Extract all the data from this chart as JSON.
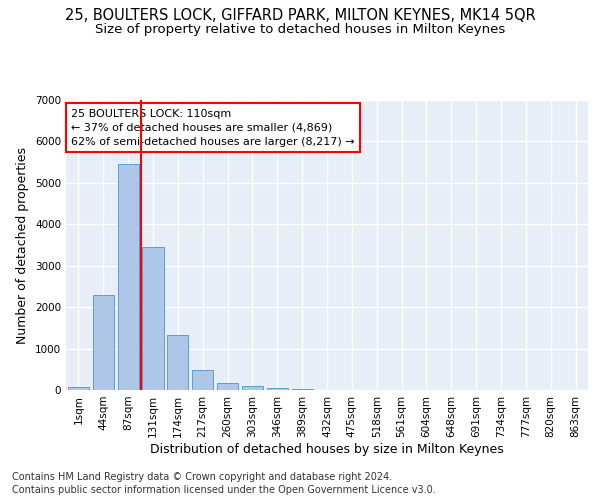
{
  "title": "25, BOULTERS LOCK, GIFFARD PARK, MILTON KEYNES, MK14 5QR",
  "subtitle": "Size of property relative to detached houses in Milton Keynes",
  "xlabel": "Distribution of detached houses by size in Milton Keynes",
  "ylabel": "Number of detached properties",
  "footnote1": "Contains HM Land Registry data © Crown copyright and database right 2024.",
  "footnote2": "Contains public sector information licensed under the Open Government Licence v3.0.",
  "bar_labels": [
    "1sqm",
    "44sqm",
    "87sqm",
    "131sqm",
    "174sqm",
    "217sqm",
    "260sqm",
    "303sqm",
    "346sqm",
    "389sqm",
    "432sqm",
    "475sqm",
    "518sqm",
    "561sqm",
    "604sqm",
    "648sqm",
    "691sqm",
    "734sqm",
    "777sqm",
    "820sqm",
    "863sqm"
  ],
  "bar_values": [
    80,
    2300,
    5450,
    3450,
    1320,
    480,
    165,
    100,
    55,
    20,
    5,
    2,
    1,
    0,
    0,
    0,
    0,
    0,
    0,
    0,
    0
  ],
  "bar_color": "#aec6e8",
  "bar_edge_color": "#5a9fd4",
  "vline_x": 2.5,
  "vline_color": "red",
  "annotation_text": "25 BOULTERS LOCK: 110sqm\n← 37% of detached houses are smaller (4,869)\n62% of semi-detached houses are larger (8,217) →",
  "annotation_box_color": "white",
  "annotation_box_edge": "red",
  "ylim": [
    0,
    7000
  ],
  "yticks": [
    0,
    1000,
    2000,
    3000,
    4000,
    5000,
    6000,
    7000
  ],
  "bg_color": "#e8eef8",
  "grid_color": "white",
  "title_fontsize": 10.5,
  "subtitle_fontsize": 9.5,
  "label_fontsize": 9,
  "tick_fontsize": 7.5,
  "annotation_fontsize": 8,
  "footnote_fontsize": 7
}
